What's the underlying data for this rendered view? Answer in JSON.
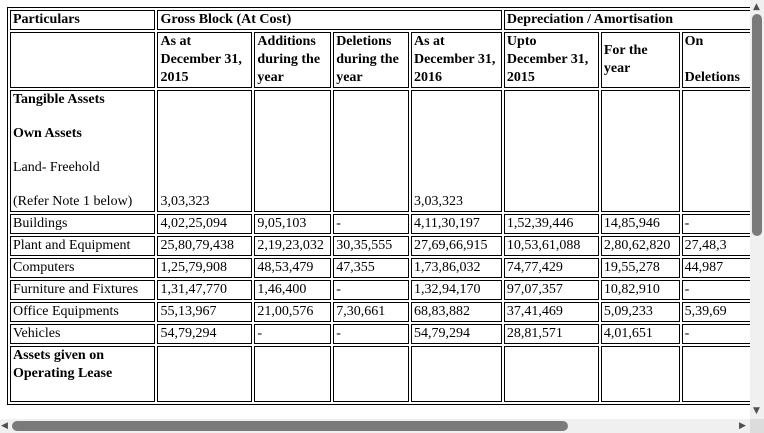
{
  "headers": {
    "particulars": "Particulars",
    "gross_block": "Gross Block (At Cost)",
    "depreciation": "Depreciation / Amortisation",
    "col_as_at_1": "As at",
    "col_as_at_2": "December 31,",
    "col_as_at_3": "2015",
    "col_add_1": "Additions",
    "col_add_2": "during the",
    "col_add_3": "year",
    "col_del_1": "Deletions",
    "col_del_2": "during the",
    "col_del_3": "year",
    "col_as_at2_1": "As at",
    "col_as_at2_2": "December 31,",
    "col_as_at2_3": "2016",
    "col_upto_1": "Upto",
    "col_upto_2": "December 31,",
    "col_upto_3": "2015",
    "col_for_1": "For the",
    "col_for_2": "year",
    "col_on_1": "On",
    "col_on_2": "Deletions"
  },
  "section": {
    "tangible": "Tangible Assets",
    "own": "Own Assets",
    "land": "Land- Freehold",
    "refer": "(Refer Note 1 below)",
    "land_as_at": "3,03,323",
    "land_as_at2": "3,03,323",
    "leased_1": "Assets given on",
    "leased_2": "Operating Lease"
  },
  "rows": [
    {
      "name": "Buildings",
      "as_at": "4,02,25,094",
      "add": "9,05,103",
      "del": "-",
      "as_at2": "4,11,30,197",
      "upto": "1,52,39,446",
      "for_year": "14,85,946",
      "on_del": "-"
    },
    {
      "name": "Plant and Equipment",
      "as_at": "25,80,79,438",
      "add": "2,19,23,032",
      "del": "30,35,555",
      "as_at2": "27,69,66,915",
      "upto": "10,53,61,088",
      "for_year": "2,80,62,820",
      "on_del": "27,48,3"
    },
    {
      "name": "Computers",
      "as_at": "1,25,79,908",
      "add": "48,53,479",
      "del": "47,355",
      "as_at2": "1,73,86,032",
      "upto": "74,77,429",
      "for_year": "19,55,278",
      "on_del": "44,987"
    },
    {
      "name": "Furniture and Fixtures",
      "as_at": "1,31,47,770",
      "add": "1,46,400",
      "del": "-",
      "as_at2": "1,32,94,170",
      "upto": "97,07,357",
      "for_year": "10,82,910",
      "on_del": "-"
    },
    {
      "name": "Office Equipments",
      "as_at": "55,13,967",
      "add": "21,00,576",
      "del": "7,30,661",
      "as_at2": "68,83,882",
      "upto": "37,41,469",
      "for_year": "5,09,233",
      "on_del": "5,39,69"
    },
    {
      "name": "Vehicles",
      "as_at": "54,79,294",
      "add": "-",
      "del": "-",
      "as_at2": "54,79,294",
      "upto": "28,81,571",
      "for_year": "4,01,651",
      "on_del": "-"
    }
  ]
}
